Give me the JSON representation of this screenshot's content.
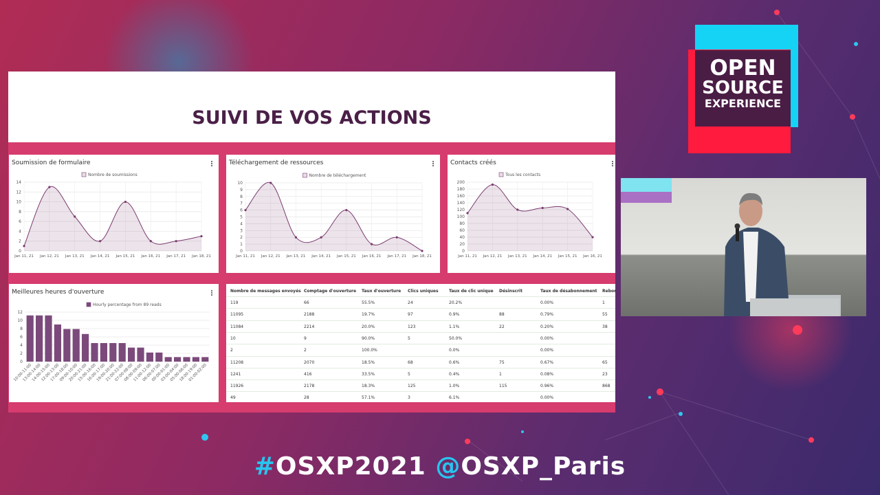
{
  "logo": {
    "lines": [
      "OPEN",
      "SOURCE",
      "EXPERIENCE"
    ]
  },
  "slide": {
    "title": "SUIVI DE VOS ACTIONS"
  },
  "chart_data": [
    {
      "type": "line",
      "title": "Soumission de formulaire",
      "categories": [
        "Jan 11, 21",
        "Jan 12, 21",
        "Jan 13, 21",
        "Jan 14, 21",
        "Jan 15, 21",
        "Jan 16, 21",
        "Jan 17, 21",
        "Jan 18, 21"
      ],
      "series": [
        {
          "name": "Nombre de soumissions",
          "color": "#7a3b6e",
          "values": [
            1,
            13,
            7,
            2,
            10,
            2,
            2,
            3
          ]
        }
      ],
      "ylim": [
        0,
        14
      ],
      "yticks": [
        0,
        2,
        4,
        6,
        8,
        10,
        12,
        14
      ],
      "grid": true
    },
    {
      "type": "line",
      "title": "Téléchargement de ressources",
      "categories": [
        "Jan 11, 21",
        "Jan 12, 21",
        "Jan 13, 21",
        "Jan 14, 21",
        "Jan 15, 21",
        "Jan 16, 21",
        "Jan 17, 21",
        "Jan 18, 21"
      ],
      "series": [
        {
          "name": "Nombre de téléchargement",
          "color": "#7a3b6e",
          "values": [
            6,
            10,
            2,
            2,
            6,
            1,
            2,
            0
          ]
        }
      ],
      "ylim": [
        0,
        10
      ],
      "yticks": [
        0,
        1,
        2,
        3,
        4,
        5,
        6,
        7,
        8,
        9,
        10
      ],
      "grid": true
    },
    {
      "type": "line",
      "title": "Contacts créés",
      "categories": [
        "Jan 11, 21",
        "Jan 12, 21",
        "Jan 13, 21",
        "Jan 14, 21",
        "Jan 15, 21",
        "Jan 16, 21"
      ],
      "series": [
        {
          "name": "Tous les contacts",
          "color": "#7a3b6e",
          "values": [
            110,
            193,
            120,
            125,
            122,
            40
          ]
        }
      ],
      "ylim": [
        0,
        200
      ],
      "yticks": [
        0,
        20,
        40,
        60,
        80,
        100,
        120,
        140,
        160,
        180,
        200
      ],
      "grid": true
    },
    {
      "type": "bar",
      "title": "Meilleures heures d'ouverture",
      "categories": [
        "10:00-11:00",
        "13:00-14:00",
        "14:00-15:00",
        "12:00-13:00",
        "17:00-18:00",
        "09:00-10:00",
        "20:00-21:00",
        "15:00-16:00",
        "16:00-17:00",
        "19:00-20:00",
        "21:00-22:00",
        "07:00-08:00",
        "08:00-09:00",
        "11:00-12:00",
        "06:00-07:00",
        "00:00-01:00",
        "03:00-04:00",
        "05:00-06:00",
        "18:00-19:00",
        "01:00-02:00"
      ],
      "series": [
        {
          "name": "Hourly percentage from 89 reads",
          "color": "#7b4a7b",
          "values": [
            11.2,
            11.2,
            11.2,
            9.0,
            7.9,
            7.9,
            6.7,
            4.5,
            4.5,
            4.5,
            4.5,
            3.4,
            3.4,
            2.2,
            2.2,
            1.1,
            1.1,
            1.1,
            1.1,
            1.1
          ]
        }
      ],
      "ylim": [
        0,
        12
      ],
      "yticks": [
        0,
        2,
        4,
        6,
        8,
        10,
        12
      ],
      "grid": true
    }
  ],
  "table": {
    "columns": [
      "Nombre de messages envoyés",
      "Comptage d'ouverture",
      "Taux d'ouverture",
      "Clics uniques",
      "Taux de clic unique",
      "Désinscrit",
      "Taux de désabonnement",
      "Rebon"
    ],
    "rows": [
      [
        "119",
        "66",
        "55.5%",
        "24",
        "20.2%",
        null,
        "0.00%",
        "1"
      ],
      [
        "11095",
        "2188",
        "19.7%",
        "97",
        "0.9%",
        "88",
        "0.79%",
        "55"
      ],
      [
        "11084",
        "2214",
        "20.0%",
        "123",
        "1.1%",
        "22",
        "0.20%",
        "38"
      ],
      [
        "10",
        "9",
        "90.0%",
        "5",
        "50.0%",
        null,
        "0.00%",
        null
      ],
      [
        "2",
        "2",
        "100.0%",
        null,
        "0.0%",
        null,
        "0.00%",
        null
      ],
      [
        "11208",
        "2070",
        "18.5%",
        "68",
        "0.6%",
        "75",
        "0.67%",
        "65"
      ],
      [
        "1241",
        "416",
        "33.5%",
        "5",
        "0.4%",
        "1",
        "0.08%",
        "23"
      ],
      [
        "11926",
        "2178",
        "18.3%",
        "125",
        "1.0%",
        "115",
        "0.96%",
        "868"
      ],
      [
        "49",
        "28",
        "57.1%",
        "3",
        "6.1%",
        null,
        "0.00%",
        null
      ]
    ]
  },
  "footer": {
    "parts": [
      "#",
      "OSXP2021 ",
      "@",
      "OSXP_Paris"
    ]
  }
}
